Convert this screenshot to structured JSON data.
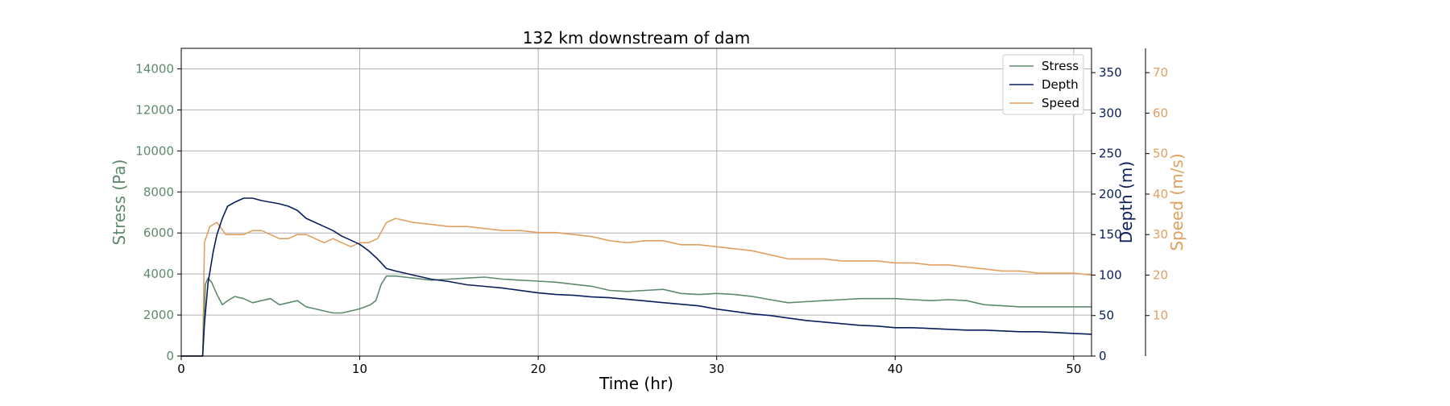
{
  "colors": {
    "stress": "#5e8a6e",
    "depth": "#0a1e5c",
    "speed": "#e0a060",
    "grid": "#b0b0b0",
    "axis": "#000000"
  },
  "chart_data": {
    "type": "line",
    "title": "132 km downstream of dam",
    "xlabel": "Time (hr)",
    "xlim": [
      0,
      51
    ],
    "xticks": [
      0,
      10,
      20,
      30,
      40,
      50
    ],
    "grid": true,
    "legend": {
      "placement": "top-right",
      "entries": [
        "Stress",
        "Depth",
        "Speed"
      ]
    },
    "axes": {
      "stress": {
        "label": "Stress (Pa)",
        "side": "left",
        "ylim": [
          0,
          15000
        ],
        "ticks": [
          0,
          2000,
          4000,
          6000,
          8000,
          10000,
          12000,
          14000
        ]
      },
      "depth": {
        "label": "Depth (m)",
        "side": "right",
        "ylim": [
          0,
          380
        ],
        "ticks": [
          0,
          50,
          100,
          150,
          200,
          250,
          300,
          350
        ]
      },
      "speed": {
        "label": "Speed (m/s)",
        "side": "right-outer",
        "ylim": [
          0,
          76
        ],
        "ticks": [
          10,
          20,
          30,
          40,
          50,
          60,
          70
        ]
      }
    },
    "series": [
      {
        "name": "Stress",
        "axis": "stress",
        "x": [
          0,
          1.2,
          1.35,
          1.5,
          1.7,
          2.0,
          2.3,
          2.6,
          3,
          3.5,
          4,
          4.5,
          5,
          5.5,
          6,
          6.5,
          7,
          7.5,
          8,
          8.5,
          9,
          9.5,
          10,
          10.3,
          10.6,
          10.9,
          11.2,
          11.5,
          12,
          13,
          14,
          15,
          16,
          17,
          18,
          19,
          20,
          21,
          22,
          23,
          24,
          25,
          26,
          27,
          28,
          29,
          30,
          31,
          32,
          33,
          34,
          35,
          36,
          37,
          38,
          39,
          40,
          41,
          42,
          43,
          44,
          45,
          46,
          47,
          48,
          49,
          50,
          51
        ],
        "y": [
          0,
          0,
          3500,
          3800,
          3600,
          3000,
          2500,
          2700,
          2900,
          2800,
          2600,
          2700,
          2800,
          2500,
          2600,
          2700,
          2400,
          2300,
          2200,
          2100,
          2100,
          2200,
          2300,
          2400,
          2500,
          2700,
          3500,
          3900,
          3900,
          3800,
          3700,
          3750,
          3800,
          3850,
          3750,
          3700,
          3650,
          3600,
          3500,
          3400,
          3200,
          3150,
          3200,
          3250,
          3050,
          3000,
          3050,
          3000,
          2900,
          2750,
          2600,
          2650,
          2700,
          2750,
          2800,
          2800,
          2800,
          2750,
          2700,
          2750,
          2700,
          2500,
          2450,
          2400,
          2400,
          2400,
          2400,
          2400
        ]
      },
      {
        "name": "Depth",
        "axis": "depth",
        "x": [
          0,
          1.2,
          1.3,
          1.5,
          1.8,
          2.0,
          2.3,
          2.6,
          3,
          3.5,
          4,
          4.5,
          5,
          5.5,
          6,
          6.5,
          7,
          7.5,
          8,
          8.5,
          9,
          9.5,
          10,
          10.5,
          11,
          11.5,
          12,
          13,
          14,
          15,
          16,
          17,
          18,
          19,
          20,
          21,
          22,
          23,
          24,
          25,
          26,
          27,
          28,
          29,
          30,
          31,
          32,
          33,
          34,
          35,
          36,
          37,
          38,
          39,
          40,
          41,
          42,
          43,
          44,
          45,
          46,
          47,
          48,
          49,
          50,
          51
        ],
        "y": [
          0,
          0,
          40,
          90,
          130,
          150,
          170,
          185,
          190,
          195,
          195,
          192,
          190,
          188,
          185,
          180,
          170,
          165,
          160,
          155,
          148,
          143,
          138,
          130,
          120,
          108,
          105,
          100,
          95,
          92,
          88,
          86,
          84,
          81,
          78,
          76,
          75,
          73,
          72,
          70,
          68,
          66,
          64,
          62,
          58,
          55,
          52,
          50,
          47,
          44,
          42,
          40,
          38,
          37,
          35,
          35,
          34,
          33,
          32,
          32,
          31,
          30,
          30,
          29,
          28,
          27
        ]
      },
      {
        "name": "Speed",
        "axis": "speed",
        "x": [
          0,
          1.2,
          1.3,
          1.6,
          2.0,
          2.5,
          3,
          3.5,
          4,
          4.5,
          5,
          5.5,
          6,
          6.5,
          7,
          7.5,
          8,
          8.5,
          9,
          9.5,
          10,
          10.5,
          11,
          11.5,
          12,
          13,
          14,
          15,
          16,
          17,
          18,
          19,
          20,
          21,
          22,
          23,
          24,
          25,
          26,
          27,
          28,
          29,
          30,
          31,
          32,
          33,
          34,
          35,
          36,
          37,
          38,
          39,
          40,
          41,
          42,
          43,
          44,
          45,
          46,
          47,
          48,
          49,
          50,
          51
        ],
        "y": [
          0,
          0,
          28,
          32,
          33,
          30,
          30,
          30,
          31,
          31,
          30,
          29,
          29,
          30,
          30,
          29,
          28,
          29,
          28,
          27,
          28,
          28,
          29,
          33,
          34,
          33,
          32.5,
          32,
          32,
          31.5,
          31,
          31,
          30.5,
          30.5,
          30,
          29.5,
          28.5,
          28,
          28.5,
          28.5,
          27.5,
          27.5,
          27,
          26.5,
          26,
          25,
          24,
          24,
          24,
          23.5,
          23.5,
          23.5,
          23,
          23,
          22.5,
          22.5,
          22,
          21.5,
          21,
          21,
          20.5,
          20.5,
          20.5,
          20
        ]
      }
    ]
  }
}
